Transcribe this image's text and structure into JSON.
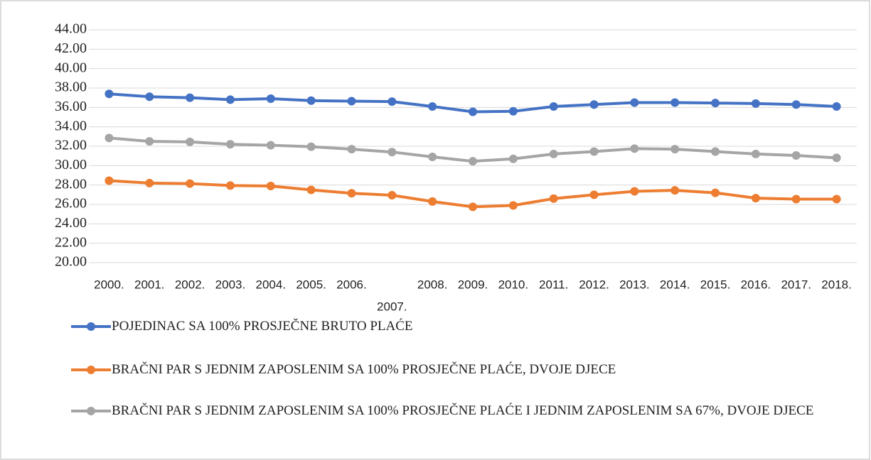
{
  "chart_data": {
    "type": "line",
    "categories": [
      "2000.",
      "2001.",
      "2002.",
      "2003.",
      "2004.",
      "2005.",
      "2006.",
      "2007.",
      "2008.",
      "2009.",
      "2010.",
      "2011.",
      "2012.",
      "2013.",
      "2014.",
      "2015.",
      "2016.",
      "2017.",
      "2018."
    ],
    "series": [
      {
        "name": "POJEDINAC SA 100% PROSJEČNE BRUTO PLAĆE",
        "color": "#4472c4",
        "values": [
          37.4,
          37.1,
          37.0,
          36.8,
          36.9,
          36.7,
          36.65,
          36.6,
          36.1,
          35.55,
          35.6,
          36.1,
          36.3,
          36.5,
          36.5,
          36.45,
          36.4,
          36.3,
          36.1
        ]
      },
      {
        "name": "BRAČNI PAR S JEDNIM ZAPOSLENIM SA 100% PROSJEČNE PLAĆE, DVOJE DJECE",
        "color": "#ed7d31",
        "values": [
          28.45,
          28.2,
          28.15,
          27.95,
          27.9,
          27.5,
          27.15,
          26.95,
          26.3,
          25.75,
          25.9,
          26.6,
          27.0,
          27.35,
          27.45,
          27.2,
          26.65,
          26.55,
          26.55
        ]
      },
      {
        "name": "BRAČNI PAR S JEDNIM ZAPOSLENIM SA 100% PROSJEČNE PLAĆE I JEDNIM ZAPOSLENIM SA 67%, DVOJE DJECE",
        "color": "#a5a5a5",
        "values": [
          32.85,
          32.5,
          32.45,
          32.2,
          32.1,
          31.95,
          31.7,
          31.4,
          30.9,
          30.45,
          30.7,
          31.2,
          31.45,
          31.75,
          31.7,
          31.45,
          31.2,
          31.05,
          30.8
        ]
      }
    ],
    "ylim": [
      20,
      44
    ],
    "yticks": [
      {
        "value": 20,
        "label": "20.00"
      },
      {
        "value": 22,
        "label": "22.00"
      },
      {
        "value": 24,
        "label": "24.00"
      },
      {
        "value": 26,
        "label": "26.00"
      },
      {
        "value": 28,
        "label": "28.00"
      },
      {
        "value": 30,
        "label": "30.00"
      },
      {
        "value": 32,
        "label": "32.00"
      },
      {
        "value": 34,
        "label": "34.00"
      },
      {
        "value": 36,
        "label": "36.00"
      },
      {
        "value": 38,
        "label": "38.00"
      },
      {
        "value": 40,
        "label": "40.00"
      },
      {
        "value": 42,
        "label": "42.00"
      },
      {
        "value": 44,
        "label": "44.00"
      }
    ],
    "grid": true,
    "legend": "bottom"
  }
}
